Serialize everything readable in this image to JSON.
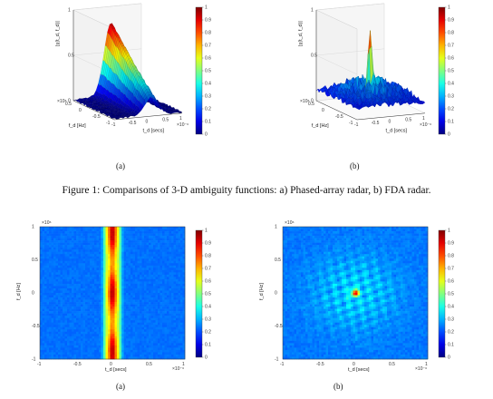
{
  "caption": "Figure 1: Comparisons of 3-D ambiguity functions: a) Phased-array radar, b) FDA radar.",
  "sublabels": [
    "(a)",
    "(b)",
    "(a)",
    "(b)"
  ],
  "colorbar": {
    "ticks": [
      "1",
      "0.9",
      "0.8",
      "0.7",
      "0.6",
      "0.5",
      "0.4",
      "0.3",
      "0.2",
      "0.1",
      "0"
    ]
  },
  "surface": {
    "zlabel": "|χ(t_d, f_d)|",
    "z_ticks": [
      "1",
      "0.5",
      "0"
    ],
    "fd_ticks": [
      "0.5",
      "0",
      "-0.5",
      "-1"
    ],
    "td_ticks": [
      "-1",
      "-0.5",
      "0",
      "0.5",
      "1"
    ],
    "fd_exp": "×10⁶",
    "td_exp": "×10⁻⁶",
    "fd_label": "f_d [Hz]",
    "td_label": "t_d [secs]"
  },
  "heatmap": {
    "y_ticks": [
      "1",
      "0.5",
      "0",
      "-0.5",
      "-1"
    ],
    "x_ticks": [
      "-1",
      "-0.5",
      "0",
      "0.5",
      "1"
    ],
    "y_exp": "×10⁶",
    "x_exp": "×10⁻⁶",
    "ylabel": "f_d [Hz]",
    "xlabel": "t_d [secs]"
  }
}
